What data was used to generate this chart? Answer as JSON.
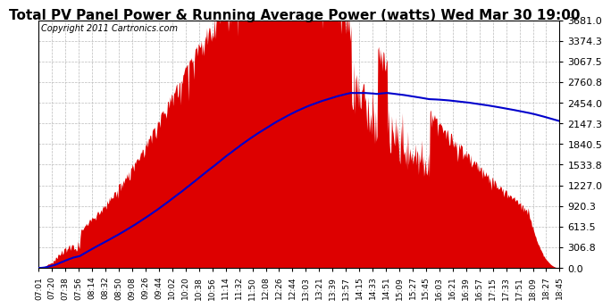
{
  "title": "Total PV Panel Power & Running Average Power (watts) Wed Mar 30 19:00",
  "copyright_text": "Copyright 2011 Cartronics.com",
  "y_max": 3681.0,
  "y_ticks": [
    0.0,
    306.8,
    613.5,
    920.3,
    1227.0,
    1533.8,
    1840.5,
    2147.3,
    2454.0,
    2760.8,
    3067.5,
    3374.3,
    3681.0
  ],
  "x_labels": [
    "07:01",
    "07:20",
    "07:38",
    "07:56",
    "08:14",
    "08:32",
    "08:50",
    "09:08",
    "09:26",
    "09:44",
    "10:02",
    "10:20",
    "10:38",
    "10:56",
    "11:14",
    "11:32",
    "11:50",
    "12:08",
    "12:26",
    "12:44",
    "13:03",
    "13:21",
    "13:39",
    "13:57",
    "14:15",
    "14:33",
    "14:51",
    "15:09",
    "15:27",
    "15:45",
    "16:03",
    "16:21",
    "16:39",
    "16:57",
    "17:15",
    "17:33",
    "17:51",
    "18:09",
    "18:27",
    "18:45"
  ],
  "fill_color": "#DD0000",
  "line_color": "#0000CC",
  "background_color": "#FFFFFF",
  "grid_color": "#BBBBBB",
  "title_fontsize": 11,
  "copyright_fontsize": 7,
  "tick_label_fontsize": 6.5,
  "ytick_fontsize": 8
}
